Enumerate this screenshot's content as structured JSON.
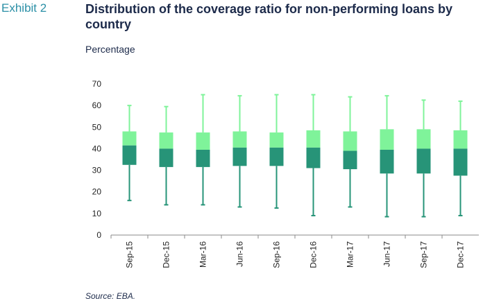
{
  "header": {
    "exhibit": "Exhibit 2",
    "title": "Distribution of the coverage ratio for non-performing loans by country",
    "subtitle": "Percentage"
  },
  "footer": {
    "source": "Source: EBA."
  },
  "colors": {
    "upper_box": "#7ff39a",
    "lower_box": "#279478",
    "upper_whisker": "#7ff39a",
    "lower_whisker": "#279478",
    "text": "#1c2a4a",
    "exhibit": "#2a8fa6"
  },
  "chart_data": {
    "type": "boxplot",
    "title": "Distribution of the coverage ratio for non-performing loans by country",
    "ylabel": "Percentage",
    "ylim": [
      0,
      70
    ],
    "yticks": [
      0,
      10,
      20,
      30,
      40,
      50,
      60,
      70
    ],
    "grid": false,
    "categories": [
      "Sep-15",
      "Dec-15",
      "Mar-16",
      "Jun-16",
      "Sep-16",
      "Dec-16",
      "Mar-17",
      "Jun-17",
      "Sep-17",
      "Dec-17"
    ],
    "min": [
      16,
      14,
      14,
      13,
      12.5,
      9,
      13,
      8.5,
      8.5,
      9
    ],
    "q1": [
      32.5,
      31.5,
      31.5,
      32,
      32,
      31,
      30.5,
      28.5,
      28.5,
      27.5
    ],
    "median": [
      41.5,
      40,
      39.5,
      40.5,
      40.5,
      40.5,
      39,
      39.5,
      40,
      40
    ],
    "q3": [
      48,
      47.5,
      47.5,
      48,
      47.5,
      48.5,
      48,
      49,
      49,
      48.5
    ],
    "max": [
      60,
      59.5,
      65,
      64.5,
      65,
      65,
      64,
      64.5,
      62.5,
      62
    ]
  }
}
